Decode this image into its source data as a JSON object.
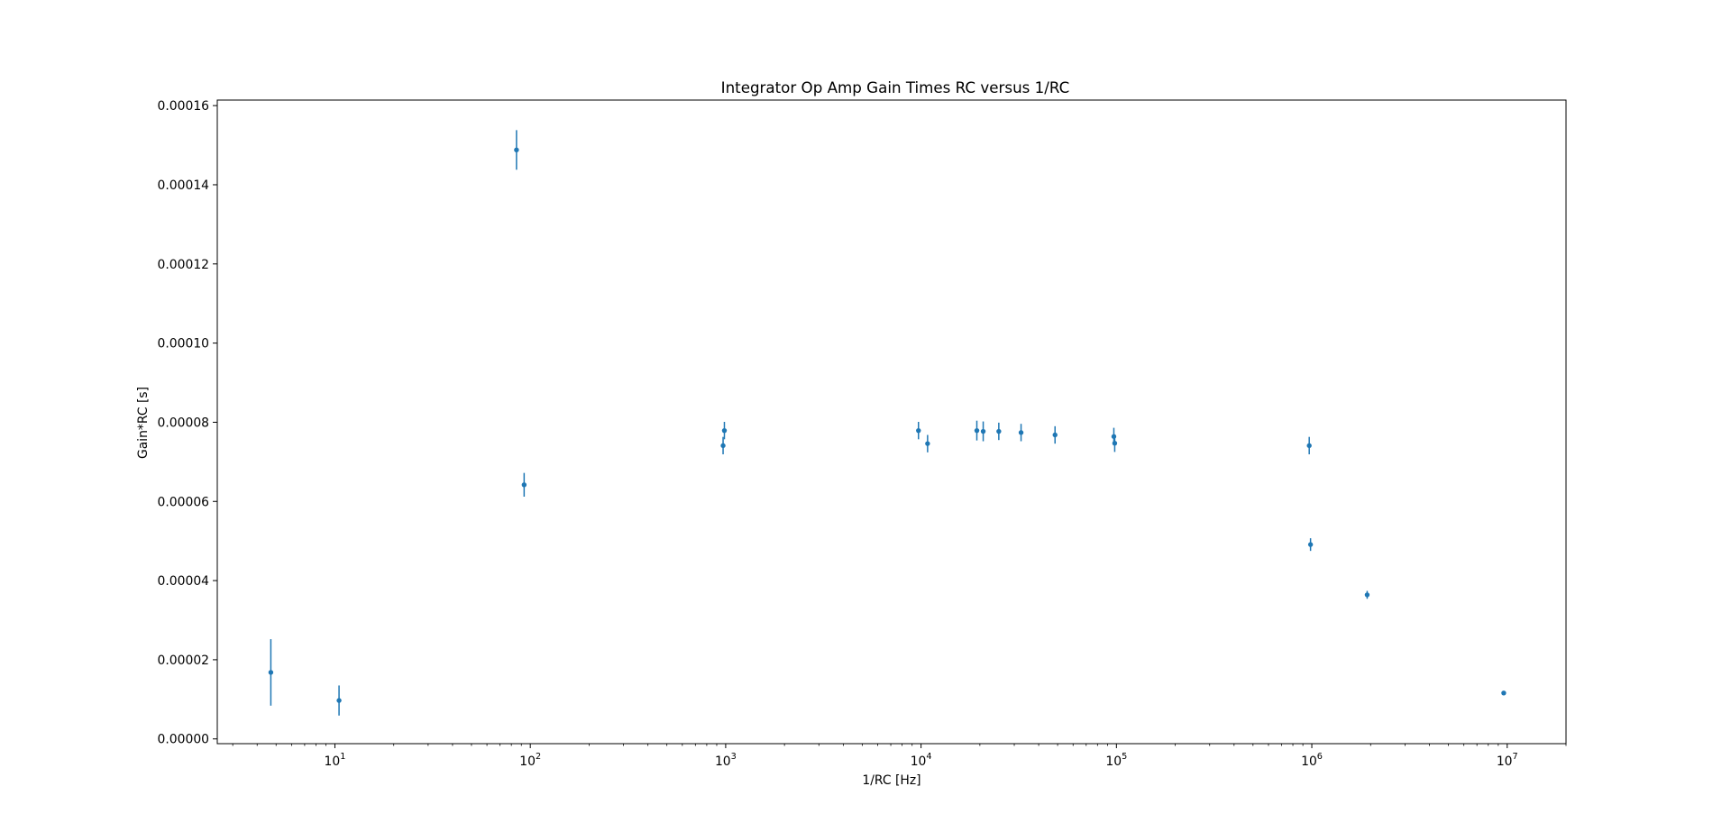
{
  "chart_data": {
    "type": "scatter",
    "title": "Integrator Op Amp Gain Times RC versus 1/RC",
    "xlabel": "1/RC [Hz]",
    "ylabel": "Gain*RC [s]",
    "x_scale": "log",
    "xlim": [
      2.5,
      20000000
    ],
    "ylim": [
      -1.2e-06,
      0.0001614
    ],
    "x_major_ticks": [
      10,
      100,
      1000,
      10000,
      100000,
      1000000,
      10000000
    ],
    "x_tick_labels": [
      {
        "base": "10",
        "exp": "1"
      },
      {
        "base": "10",
        "exp": "2"
      },
      {
        "base": "10",
        "exp": "3"
      },
      {
        "base": "10",
        "exp": "4"
      },
      {
        "base": "10",
        "exp": "5"
      },
      {
        "base": "10",
        "exp": "6"
      },
      {
        "base": "10",
        "exp": "7"
      }
    ],
    "y_ticks": [
      0,
      2e-05,
      4e-05,
      6e-05,
      8e-05,
      0.0001,
      0.00012,
      0.00014,
      0.00016
    ],
    "y_tick_labels": [
      "0.00000",
      "0.00002",
      "0.00004",
      "0.00006",
      "0.00008",
      "0.00010",
      "0.00012",
      "0.00014",
      "0.00016"
    ],
    "grid": false,
    "marker_color": "#1f77b4",
    "points": [
      {
        "x": 4.7,
        "y": 1.68e-05,
        "err": 8.4e-06
      },
      {
        "x": 10.5,
        "y": 9.7e-06,
        "err": 3.8e-06
      },
      {
        "x": 85,
        "y": 0.0001488,
        "err": 5e-06
      },
      {
        "x": 93,
        "y": 6.42e-05,
        "err": 3e-06
      },
      {
        "x": 970,
        "y": 7.41e-05,
        "err": 2.2e-06
      },
      {
        "x": 985,
        "y": 7.79e-05,
        "err": 2.2e-06
      },
      {
        "x": 9700,
        "y": 7.79e-05,
        "err": 2.2e-06
      },
      {
        "x": 10800,
        "y": 7.46e-05,
        "err": 2.2e-06
      },
      {
        "x": 19300,
        "y": 7.79e-05,
        "err": 2.5e-06
      },
      {
        "x": 20800,
        "y": 7.77e-05,
        "err": 2.5e-06
      },
      {
        "x": 25000,
        "y": 7.77e-05,
        "err": 2.2e-06
      },
      {
        "x": 32500,
        "y": 7.74e-05,
        "err": 2.2e-06
      },
      {
        "x": 48500,
        "y": 7.68e-05,
        "err": 2.2e-06
      },
      {
        "x": 97000,
        "y": 7.64e-05,
        "err": 2.2e-06
      },
      {
        "x": 98000,
        "y": 7.47e-05,
        "err": 2.2e-06
      },
      {
        "x": 970000,
        "y": 7.41e-05,
        "err": 2.2e-06
      },
      {
        "x": 985000,
        "y": 4.91e-05,
        "err": 1.6e-06
      },
      {
        "x": 1920000,
        "y": 3.64e-05,
        "err": 1e-06
      },
      {
        "x": 9600000,
        "y": 1.16e-05,
        "err": 2e-07
      }
    ]
  }
}
